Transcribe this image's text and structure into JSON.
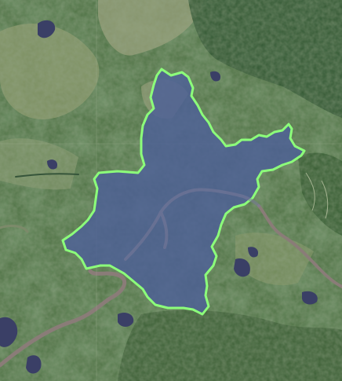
{
  "map": {
    "type": "satellite",
    "colors": {
      "terrain_base": "#4f7345",
      "terrain_dark": "#2f5230",
      "terrain_light": "#8a9a6a",
      "farmland": "#9a9c78",
      "water_lake": "#3a3f66",
      "river": "#8a7c78",
      "region_fill": "#4d5f97",
      "region_outline": "#8cff7a"
    },
    "highlighted_region": {
      "fill_opacity": 0.82,
      "outline_color": "#8cff7a"
    }
  }
}
